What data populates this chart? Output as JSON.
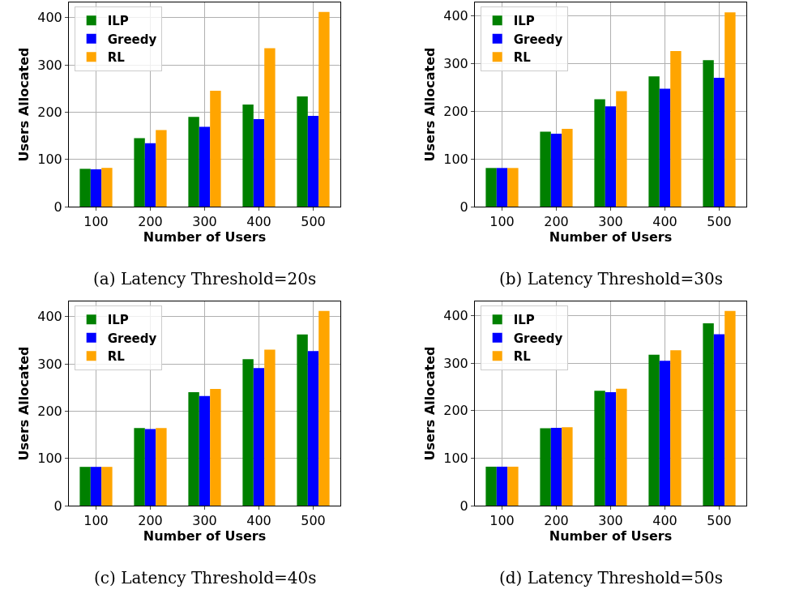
{
  "chart_data": [
    {
      "type": "bar",
      "title": "(a) Latency Threshold=20s",
      "xlabel": "Number of Users",
      "ylabel": "Users Allocated",
      "categories": [
        "100",
        "200",
        "300",
        "400",
        "500"
      ],
      "series": [
        {
          "name": "ILP",
          "color": "#008000",
          "values": [
            80,
            145,
            190,
            216,
            233
          ]
        },
        {
          "name": "Greedy",
          "color": "#0000ff",
          "values": [
            79,
            134,
            169,
            185,
            192
          ]
        },
        {
          "name": "RL",
          "color": "#ffa500",
          "values": [
            82,
            162,
            245,
            335,
            412
          ]
        }
      ],
      "ylim": [
        0,
        432
      ],
      "yticks": [
        0,
        100,
        200,
        300,
        400
      ],
      "grid": true,
      "legend": "top left"
    },
    {
      "type": "bar",
      "title": "(b) Latency Threshold=30s",
      "xlabel": "Number of Users",
      "ylabel": "Users Allocated",
      "categories": [
        "100",
        "200",
        "300",
        "400",
        "500"
      ],
      "series": [
        {
          "name": "ILP",
          "color": "#008000",
          "values": [
            81,
            157,
            225,
            273,
            307
          ]
        },
        {
          "name": "Greedy",
          "color": "#0000ff",
          "values": [
            81,
            153,
            210,
            247,
            270
          ]
        },
        {
          "name": "RL",
          "color": "#ffa500",
          "values": [
            81,
            163,
            242,
            326,
            407
          ]
        }
      ],
      "ylim": [
        0,
        428
      ],
      "yticks": [
        0,
        100,
        200,
        300,
        400
      ],
      "grid": true,
      "legend": "top left"
    },
    {
      "type": "bar",
      "title": "(c) Latency Threshold=40s",
      "xlabel": "Number of Users",
      "ylabel": "Users Allocated",
      "categories": [
        "100",
        "200",
        "300",
        "400",
        "500"
      ],
      "series": [
        {
          "name": "ILP",
          "color": "#008000",
          "values": [
            82,
            164,
            240,
            310,
            362
          ]
        },
        {
          "name": "Greedy",
          "color": "#0000ff",
          "values": [
            82,
            162,
            232,
            291,
            327
          ]
        },
        {
          "name": "RL",
          "color": "#ffa500",
          "values": [
            82,
            164,
            247,
            330,
            412
          ]
        }
      ],
      "ylim": [
        0,
        432
      ],
      "yticks": [
        0,
        100,
        200,
        300,
        400
      ],
      "grid": true,
      "legend": "top left"
    },
    {
      "type": "bar",
      "title": "(d) Latency Threshold=50s",
      "xlabel": "Number of Users",
      "ylabel": "Users Allocated",
      "categories": [
        "100",
        "200",
        "300",
        "400",
        "500"
      ],
      "series": [
        {
          "name": "ILP",
          "color": "#008000",
          "values": [
            82,
            163,
            242,
            318,
            384
          ]
        },
        {
          "name": "Greedy",
          "color": "#0000ff",
          "values": [
            82,
            164,
            239,
            305,
            361
          ]
        },
        {
          "name": "RL",
          "color": "#ffa500",
          "values": [
            82,
            165,
            246,
            327,
            410
          ]
        }
      ],
      "ylim": [
        0,
        430
      ],
      "yticks": [
        0,
        100,
        200,
        300,
        400
      ],
      "grid": true,
      "legend": "top left"
    }
  ]
}
